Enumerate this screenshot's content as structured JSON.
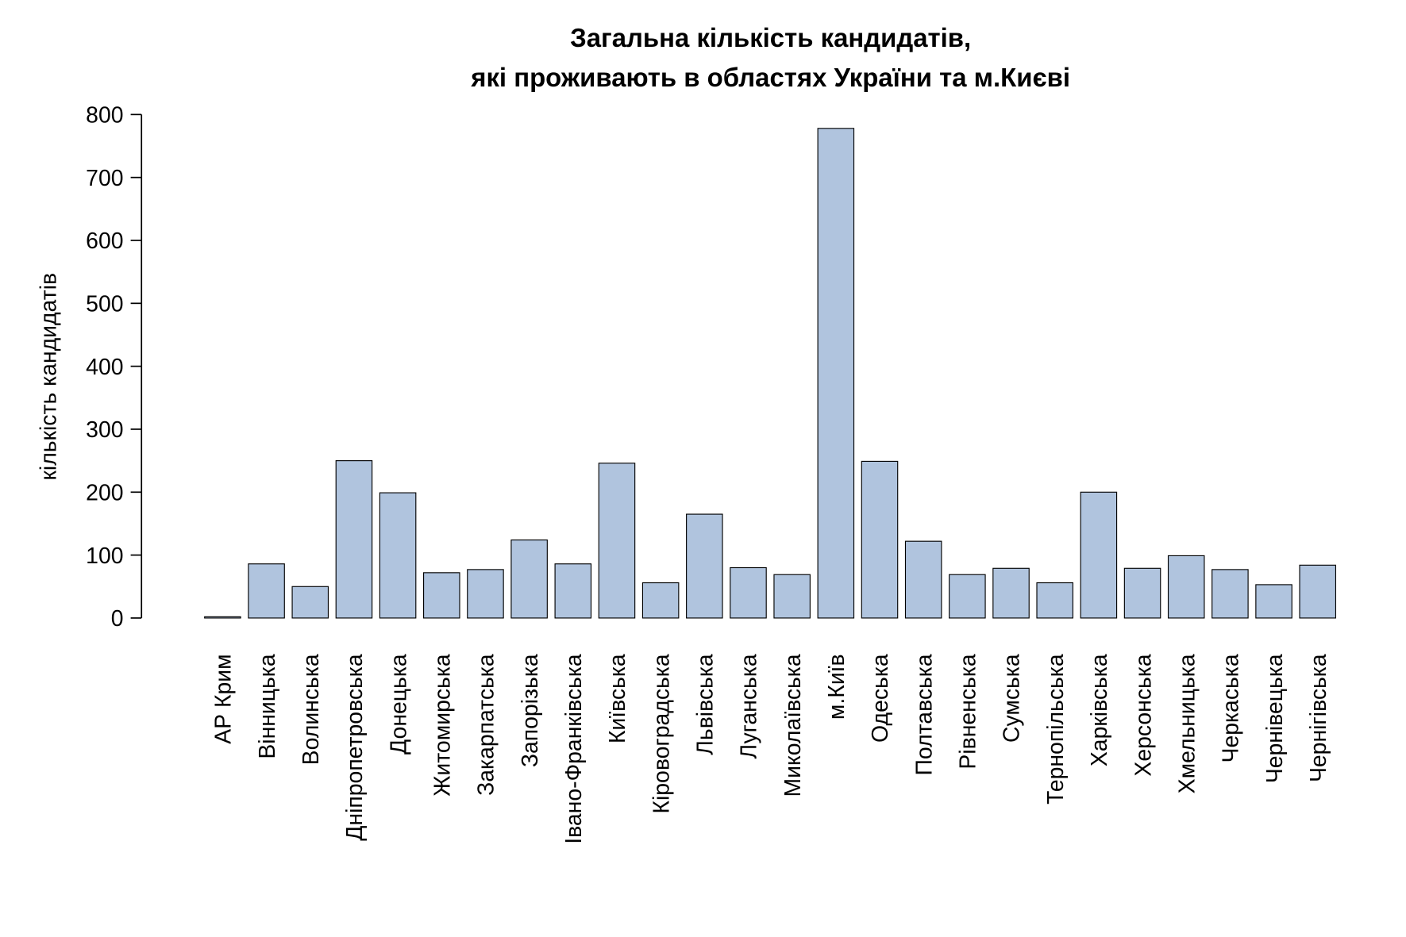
{
  "chart_data": {
    "type": "bar",
    "title": [
      "Загальна кількість кандидатів,",
      "які проживають в областях України та м.Києві"
    ],
    "y_label": "кількість кандидатів",
    "categories": [
      "АР Крим",
      "Вінницька",
      "Волинська",
      "Дніпропетровська",
      "Донецька",
      "Житомирська",
      "Закарпатська",
      "Запорізька",
      "Івано-Франківська",
      "Київська",
      "Кіровоградська",
      "Львівська",
      "Луганська",
      "Миколаївська",
      "м.Київ",
      "Одеська",
      "Полтавська",
      "Рівненська",
      "Сумська",
      "Тернопільська",
      "Харківська",
      "Херсонська",
      "Хмельницька",
      "Черкаська",
      "Чернівецька",
      "Чернігівська"
    ],
    "values": [
      2,
      86,
      50,
      250,
      199,
      72,
      77,
      124,
      86,
      246,
      56,
      165,
      80,
      69,
      778,
      249,
      122,
      69,
      79,
      56,
      200,
      79,
      99,
      77,
      53,
      84
    ],
    "color": "#b0c4de",
    "ylim": [
      0,
      800
    ],
    "yticks": [
      0,
      100,
      200,
      300,
      400,
      500,
      600,
      700,
      800
    ],
    "grid": false
  }
}
